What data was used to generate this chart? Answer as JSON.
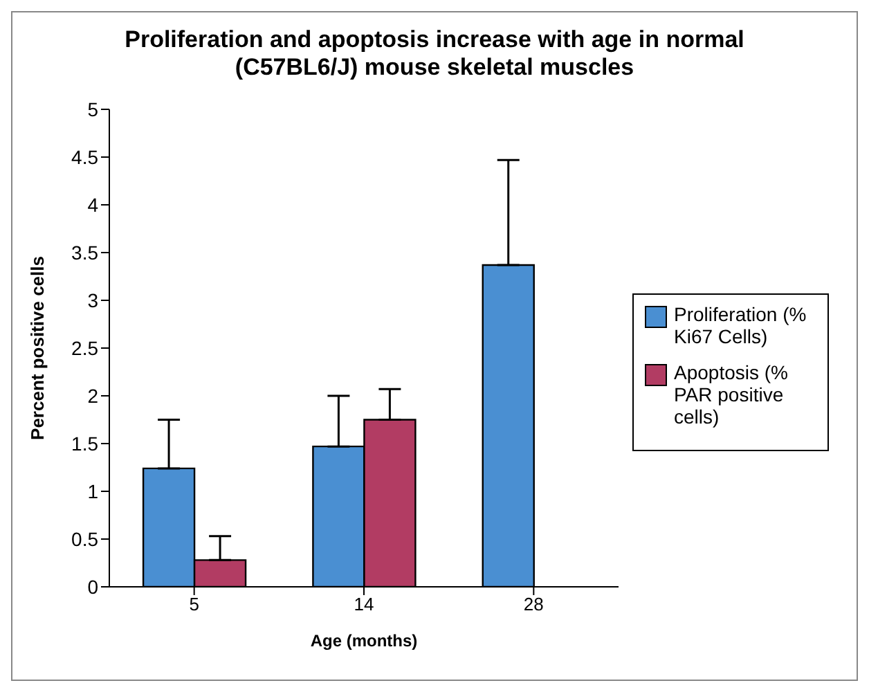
{
  "chart_data": {
    "type": "bar",
    "title": "Proliferation and apoptosis increase with age in normal (C57BL6/J) mouse skeletal muscles",
    "xlabel": "Age (months)",
    "ylabel": "Percent positive cells",
    "categories": [
      "5",
      "14",
      "28"
    ],
    "series": [
      {
        "name": "Proliferation (% Ki67 Cells)",
        "color": "#4a8fd2",
        "values": [
          1.24,
          1.47,
          3.37
        ],
        "errors": [
          [
            1.24,
            1.75
          ],
          [
            1.47,
            2.0
          ],
          [
            3.37,
            4.47
          ]
        ]
      },
      {
        "name": "Apoptosis (% PAR positive cells)",
        "color": "#b23c63",
        "values": [
          0.28,
          1.75,
          null
        ],
        "errors": [
          [
            0.28,
            0.53
          ],
          [
            1.75,
            2.07
          ],
          null
        ]
      }
    ],
    "ylim": [
      0,
      5
    ],
    "yticks": [
      0,
      0.5,
      1,
      1.5,
      2,
      2.5,
      3,
      3.5,
      4,
      4.5,
      5
    ],
    "legend": "right"
  }
}
